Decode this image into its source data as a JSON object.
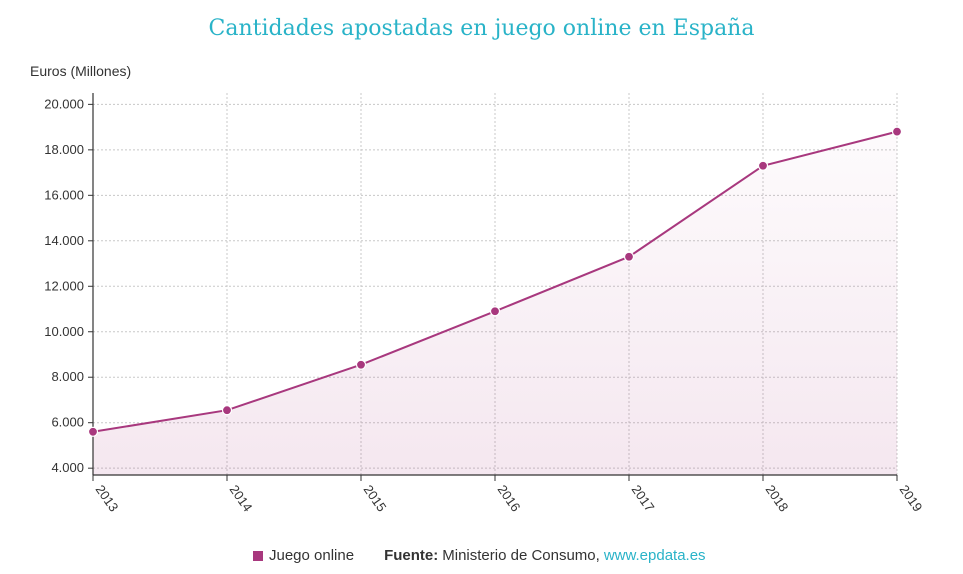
{
  "chart_data": {
    "type": "line",
    "title": "Cantidades apostadas en juego online en España",
    "ylabel": "Euros (Millones)",
    "xlabel": "",
    "categories": [
      "2013",
      "2014",
      "2015",
      "2016",
      "2017",
      "2018",
      "2019"
    ],
    "series": [
      {
        "name": "Juego online",
        "values": [
          5600,
          6550,
          8550,
          10900,
          13300,
          17300,
          18800
        ]
      }
    ],
    "ylim": [
      3700,
      20500
    ],
    "yticks": [
      4000,
      6000,
      8000,
      10000,
      12000,
      14000,
      16000,
      18000,
      20000
    ],
    "ytick_labels": [
      "4.000",
      "6.000",
      "8.000",
      "10.000",
      "12.000",
      "14.000",
      "16.000",
      "18.000",
      "20.000"
    ],
    "grid": true,
    "legend_position": "bottom"
  },
  "colors": {
    "series": "#a8387e",
    "title": "#29b3c8",
    "grid": "#c8c8c8",
    "link": "#29b3c8"
  },
  "footer": {
    "source_label": "Fuente:",
    "source_text": "Ministerio de Consumo,",
    "source_link": "www.epdata.es"
  }
}
